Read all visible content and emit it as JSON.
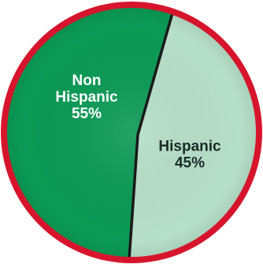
{
  "chart_data": {
    "type": "pie",
    "title": "",
    "slices": [
      {
        "label_lines": [
          "Non",
          "Hispanic",
          "55%"
        ],
        "value": 55,
        "color": "#0b9a55",
        "text_color": "#ffffff"
      },
      {
        "label_lines": [
          "Hispanic",
          "45%"
        ],
        "value": 45,
        "color": "#b6dfc9",
        "text_color": "#1c2a26"
      }
    ],
    "border_color": "#d6152c",
    "divider_color": "#1a1a1a"
  }
}
